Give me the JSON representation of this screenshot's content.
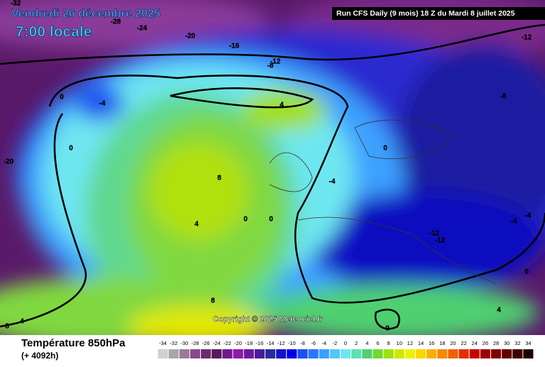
{
  "header": {
    "date": "Vendredi 26 décembre 2025",
    "time": "7:00 locale",
    "run": "Run CFS Daily (9 mois) 18 Z du Mardi 8 juillet 2025"
  },
  "copyright": "Copyright © 2025 Meteociel.fr",
  "footer": {
    "title": "Température 850hPa",
    "lead": "(+ 4092h)"
  },
  "contours": [
    -32,
    -28,
    -24,
    -20,
    -16,
    -12,
    -8,
    -12,
    -8,
    0,
    -4,
    4,
    0,
    -20,
    8,
    -4,
    0,
    4,
    0,
    0,
    -12,
    -12,
    -4,
    -4,
    0,
    8,
    4,
    8,
    0,
    4
  ],
  "scale": {
    "values": [
      -34,
      -32,
      -30,
      -28,
      -26,
      -24,
      -22,
      -20,
      -18,
      -16,
      -14,
      -12,
      -10,
      -8,
      -6,
      -4,
      -2,
      0,
      2,
      4,
      6,
      8,
      10,
      12,
      14,
      16,
      18,
      20,
      22,
      24,
      26,
      28,
      30,
      32,
      34
    ],
    "colors": [
      "#d0d0d0",
      "#a8a8a8",
      "#9a7a9a",
      "#8a4a8a",
      "#6e2a6e",
      "#5a1a5a",
      "#701a90",
      "#8c1aa8",
      "#6a1aa0",
      "#4a1a9a",
      "#2a2aa0",
      "#1414c8",
      "#0000e6",
      "#1a50f0",
      "#2878ff",
      "#3ca0ff",
      "#50c8ff",
      "#6ee6f0",
      "#60e0b0",
      "#50d070",
      "#70d830",
      "#a0e010",
      "#d0e800",
      "#f0f000",
      "#f8d800",
      "#f8b000",
      "#f88800",
      "#f06000",
      "#e03000",
      "#c80000",
      "#a00000",
      "#800000",
      "#600000",
      "#400000",
      "#200000"
    ]
  }
}
